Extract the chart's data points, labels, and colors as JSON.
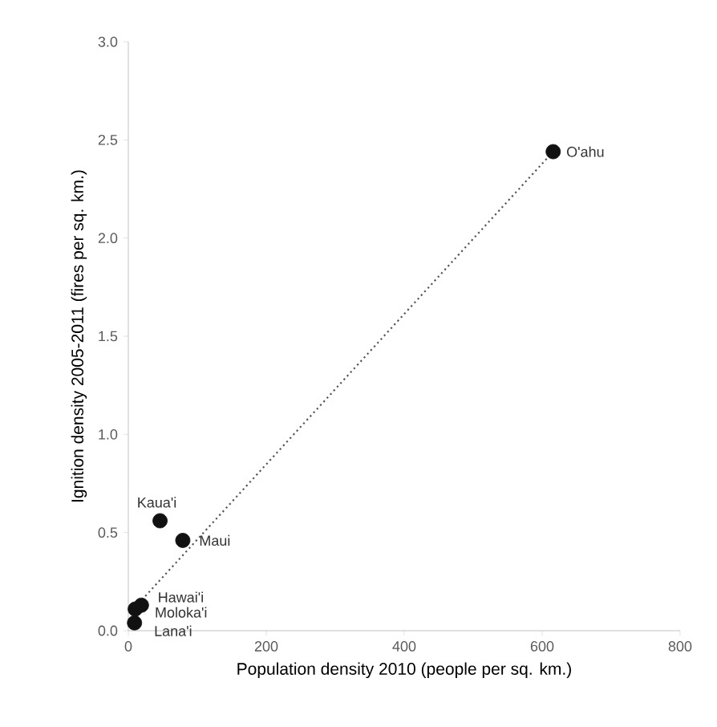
{
  "chart_data": {
    "type": "scatter",
    "xlabel": "Population density 2010 (people per sq. km.)",
    "ylabel": "Ignition density 2005-2011 (fires per sq. km.)",
    "xlim": [
      0,
      800
    ],
    "xticks": [
      0,
      200,
      400,
      600,
      800
    ],
    "ylim": [
      0,
      3.0
    ],
    "yticks": [
      {
        "value": 0,
        "label": "0.0"
      },
      {
        "value": 0.5,
        "label": "0.5"
      },
      {
        "value": 1,
        "label": "1.0"
      },
      {
        "value": 1.5,
        "label": "1.5"
      },
      {
        "value": 2,
        "label": "2.0"
      },
      {
        "value": 2.5,
        "label": "2.5"
      },
      {
        "value": 3,
        "label": "3.0"
      }
    ],
    "grid": false,
    "series": [
      {
        "color": "#111111",
        "x": [
          616,
          46,
          79,
          19,
          10,
          9
        ],
        "values": [
          2.44,
          0.56,
          0.46,
          0.13,
          0.11,
          0.04
        ]
      },
      {
        "type": "line",
        "color": "#555555",
        "line_style": "dotted",
        "x": [
          10,
          616
        ],
        "values": [
          0.12,
          2.44
        ]
      }
    ],
    "annotations": [
      {
        "text": "O'ahu",
        "x": 616,
        "y": 2.44
      },
      {
        "text": "Kaua'i",
        "x": 46,
        "y": 0.56
      },
      {
        "text": "Maui",
        "x": 79,
        "y": 0.46
      },
      {
        "text": "Hawai'i",
        "x": 19,
        "y": 0.13
      },
      {
        "text": "Moloka'i",
        "x": 10,
        "y": 0.11
      },
      {
        "text": "Lana'i",
        "x": 9,
        "y": 0.04
      }
    ]
  }
}
